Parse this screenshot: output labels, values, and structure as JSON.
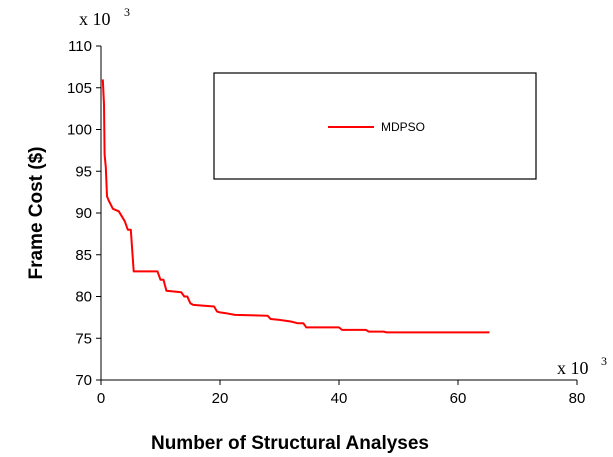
{
  "chart_data": {
    "type": "line",
    "xlabel": "Number of Structural Analyses",
    "ylabel": "Frame Cost ($)",
    "x_multiplier": "x 10",
    "x_multiplier_exp": "3",
    "y_multiplier": "x 10",
    "y_multiplier_exp": "3",
    "xlim": [
      0,
      80
    ],
    "ylim": [
      70,
      110
    ],
    "x_ticks": [
      "0",
      "20",
      "40",
      "60",
      "80"
    ],
    "y_ticks": [
      "70",
      "75",
      "80",
      "85",
      "90",
      "95",
      "100",
      "105",
      "110"
    ],
    "grid": false,
    "legend_position": "top-right",
    "series": [
      {
        "name": "MDPSO",
        "color": "#ff0000",
        "x": [
          0.3,
          0.5,
          0.6,
          0.8,
          1.0,
          1.3,
          2.0,
          3.0,
          4.0,
          4.5,
          5.0,
          5.5,
          6.0,
          9.5,
          10.0,
          10.5,
          11.0,
          13.5,
          14.0,
          14.5,
          15.0,
          15.5,
          19.0,
          19.5,
          20.0,
          21.0,
          22.5,
          28.0,
          28.5,
          30.0,
          32.0,
          33.0,
          34.0,
          34.5,
          40.0,
          40.5,
          44.5,
          45.0,
          47.5,
          48.0,
          65.3
        ],
        "y": [
          106.0,
          103.0,
          97.0,
          95.5,
          92.0,
          91.5,
          90.5,
          90.2,
          89.0,
          88.0,
          88.0,
          83.0,
          83.0,
          83.0,
          82.0,
          82.0,
          80.7,
          80.5,
          80.0,
          80.0,
          79.2,
          79.0,
          78.8,
          78.2,
          78.1,
          78.0,
          77.8,
          77.7,
          77.3,
          77.2,
          77.0,
          76.8,
          76.8,
          76.3,
          76.3,
          76.0,
          76.0,
          75.8,
          75.8,
          75.7,
          75.7
        ]
      }
    ]
  }
}
